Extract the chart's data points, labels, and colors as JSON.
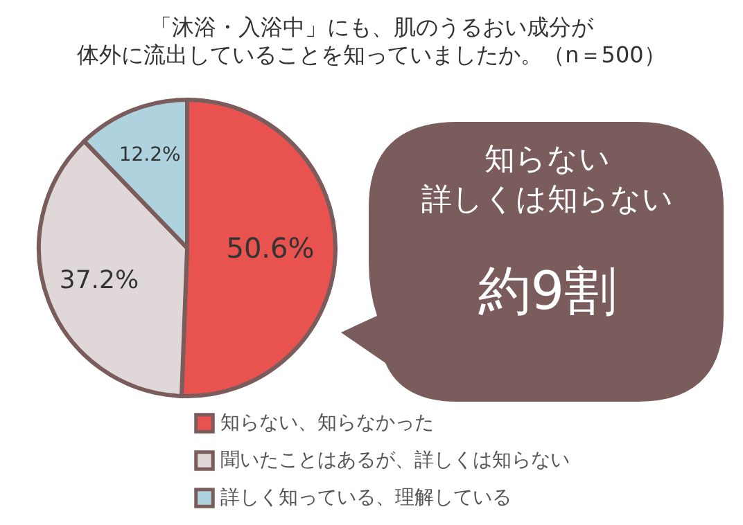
{
  "chart_data": {
    "type": "pie",
    "title": "「沐浴・入浴中」にも、肌のうるおい成分が",
    "subtitle": "体外に流出していることを知っていましたか。（n＝500）",
    "categories": [
      "知らない、知らなかった",
      "聞いたことはあるが、詳しくは知らない",
      "詳しく知っている、理解している"
    ],
    "values": [
      50.6,
      37.2,
      12.2
    ],
    "colors": [
      "#e8534f",
      "#e0d8d8",
      "#aed2de"
    ],
    "value_labels": [
      "50.6%",
      "37.2%",
      "12.2%"
    ],
    "legend": "bottom",
    "annotations": [
      "知らない",
      "詳しくは知らない",
      "約9割"
    ]
  }
}
